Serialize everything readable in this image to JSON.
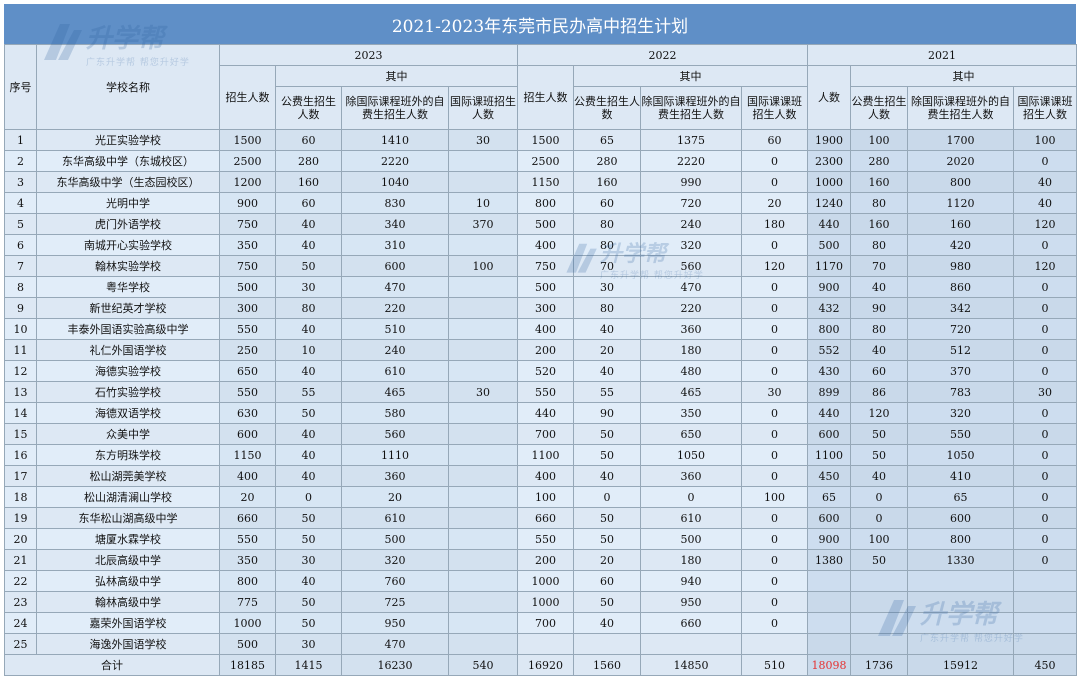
{
  "title": "2021-2023年东莞市民办高中招生计划",
  "headers": {
    "no": "序号",
    "school": "学校名称",
    "year_2023": "2023",
    "year_2022": "2022",
    "year_2021": "2021",
    "of_which": "其中",
    "total_2023": "招生人数",
    "total_2022": "招生人数",
    "total_2021": "人数",
    "public": "公费生招生人数",
    "public_2021": "公费生招生人数",
    "private": "除国际课程班外的自费生招生人数",
    "intl": "国际课班招生人数",
    "intl_2022": "国际课课班招生人数",
    "intl_2021": "国际课课班招生人数"
  },
  "rows": [
    {
      "no": "1",
      "name": "光正实验学校",
      "y23": [
        "1500",
        "60",
        "1410",
        "30"
      ],
      "y22": [
        "1500",
        "65",
        "1375",
        "60"
      ],
      "y21": [
        "1900",
        "100",
        "1700",
        "100"
      ]
    },
    {
      "no": "2",
      "name": "东华高级中学（东城校区）",
      "y23": [
        "2500",
        "280",
        "2220",
        ""
      ],
      "y22": [
        "2500",
        "280",
        "2220",
        "0"
      ],
      "y21": [
        "2300",
        "280",
        "2020",
        "0"
      ]
    },
    {
      "no": "3",
      "name": "东华高级中学（生态园校区）",
      "y23": [
        "1200",
        "160",
        "1040",
        ""
      ],
      "y22": [
        "1150",
        "160",
        "990",
        "0"
      ],
      "y21": [
        "1000",
        "160",
        "800",
        "40"
      ]
    },
    {
      "no": "4",
      "name": "光明中学",
      "y23": [
        "900",
        "60",
        "830",
        "10"
      ],
      "y22": [
        "800",
        "60",
        "720",
        "20"
      ],
      "y21": [
        "1240",
        "80",
        "1120",
        "40"
      ]
    },
    {
      "no": "5",
      "name": "虎门外语学校",
      "y23": [
        "750",
        "40",
        "340",
        "370"
      ],
      "y22": [
        "500",
        "80",
        "240",
        "180"
      ],
      "y21": [
        "440",
        "160",
        "160",
        "120"
      ]
    },
    {
      "no": "6",
      "name": "南城开心实验学校",
      "y23": [
        "350",
        "40",
        "310",
        ""
      ],
      "y22": [
        "400",
        "80",
        "320",
        "0"
      ],
      "y21": [
        "500",
        "80",
        "420",
        "0"
      ]
    },
    {
      "no": "7",
      "name": "翰林实验学校",
      "y23": [
        "750",
        "50",
        "600",
        "100"
      ],
      "y22": [
        "750",
        "70",
        "560",
        "120"
      ],
      "y21": [
        "1170",
        "70",
        "980",
        "120"
      ]
    },
    {
      "no": "8",
      "name": "粤华学校",
      "y23": [
        "500",
        "30",
        "470",
        ""
      ],
      "y22": [
        "500",
        "30",
        "470",
        "0"
      ],
      "y21": [
        "900",
        "40",
        "860",
        "0"
      ]
    },
    {
      "no": "9",
      "name": "新世纪英才学校",
      "y23": [
        "300",
        "80",
        "220",
        ""
      ],
      "y22": [
        "300",
        "80",
        "220",
        "0"
      ],
      "y21": [
        "432",
        "90",
        "342",
        "0"
      ]
    },
    {
      "no": "10",
      "name": "丰泰外国语实验高级中学",
      "y23": [
        "550",
        "40",
        "510",
        ""
      ],
      "y22": [
        "400",
        "40",
        "360",
        "0"
      ],
      "y21": [
        "800",
        "80",
        "720",
        "0"
      ]
    },
    {
      "no": "11",
      "name": "礼仁外国语学校",
      "y23": [
        "250",
        "10",
        "240",
        ""
      ],
      "y22": [
        "200",
        "20",
        "180",
        "0"
      ],
      "y21": [
        "552",
        "40",
        "512",
        "0"
      ]
    },
    {
      "no": "12",
      "name": "海德实验学校",
      "y23": [
        "650",
        "40",
        "610",
        ""
      ],
      "y22": [
        "520",
        "40",
        "480",
        "0"
      ],
      "y21": [
        "430",
        "60",
        "370",
        "0"
      ]
    },
    {
      "no": "13",
      "name": "石竹实验学校",
      "y23": [
        "550",
        "55",
        "465",
        "30"
      ],
      "y22": [
        "550",
        "55",
        "465",
        "30"
      ],
      "y21": [
        "899",
        "86",
        "783",
        "30"
      ]
    },
    {
      "no": "14",
      "name": "海德双语学校",
      "y23": [
        "630",
        "50",
        "580",
        ""
      ],
      "y22": [
        "440",
        "90",
        "350",
        "0"
      ],
      "y21": [
        "440",
        "120",
        "320",
        "0"
      ]
    },
    {
      "no": "15",
      "name": "众美中学",
      "y23": [
        "600",
        "40",
        "560",
        ""
      ],
      "y22": [
        "700",
        "50",
        "650",
        "0"
      ],
      "y21": [
        "600",
        "50",
        "550",
        "0"
      ]
    },
    {
      "no": "16",
      "name": "东方明珠学校",
      "y23": [
        "1150",
        "40",
        "1110",
        ""
      ],
      "y22": [
        "1100",
        "50",
        "1050",
        "0"
      ],
      "y21": [
        "1100",
        "50",
        "1050",
        "0"
      ]
    },
    {
      "no": "17",
      "name": "松山湖莞美学校",
      "y23": [
        "400",
        "40",
        "360",
        ""
      ],
      "y22": [
        "400",
        "40",
        "360",
        "0"
      ],
      "y21": [
        "450",
        "40",
        "410",
        "0"
      ]
    },
    {
      "no": "18",
      "name": "松山湖清澜山学校",
      "y23": [
        "20",
        "0",
        "20",
        ""
      ],
      "y22": [
        "100",
        "0",
        "0",
        "100"
      ],
      "y21": [
        "65",
        "0",
        "65",
        "0"
      ]
    },
    {
      "no": "19",
      "name": "东华松山湖高级中学",
      "y23": [
        "660",
        "50",
        "610",
        ""
      ],
      "y22": [
        "660",
        "50",
        "610",
        "0"
      ],
      "y21": [
        "600",
        "0",
        "600",
        "0"
      ]
    },
    {
      "no": "20",
      "name": "塘厦水霖学校",
      "y23": [
        "550",
        "50",
        "500",
        ""
      ],
      "y22": [
        "550",
        "50",
        "500",
        "0"
      ],
      "y21": [
        "900",
        "100",
        "800",
        "0"
      ]
    },
    {
      "no": "21",
      "name": "北辰高级中学",
      "y23": [
        "350",
        "30",
        "320",
        ""
      ],
      "y22": [
        "200",
        "20",
        "180",
        "0"
      ],
      "y21": [
        "1380",
        "50",
        "1330",
        "0"
      ]
    },
    {
      "no": "22",
      "name": "弘林高级中学",
      "y23": [
        "800",
        "40",
        "760",
        ""
      ],
      "y22": [
        "1000",
        "60",
        "940",
        "0"
      ],
      "y21": [
        "",
        "",
        "",
        ""
      ]
    },
    {
      "no": "23",
      "name": "翰林高级中学",
      "y23": [
        "775",
        "50",
        "725",
        ""
      ],
      "y22": [
        "1000",
        "50",
        "950",
        "0"
      ],
      "y21": [
        "",
        "",
        "",
        ""
      ]
    },
    {
      "no": "24",
      "name": "嘉荣外国语学校",
      "y23": [
        "1000",
        "50",
        "950",
        ""
      ],
      "y22": [
        "700",
        "40",
        "660",
        "0"
      ],
      "y21": [
        "",
        "",
        "",
        ""
      ]
    },
    {
      "no": "25",
      "name": "海逸外国语学校",
      "y23": [
        "500",
        "30",
        "470",
        ""
      ],
      "y22": [
        "",
        "",
        "",
        ""
      ],
      "y21": [
        "",
        "",
        "",
        ""
      ]
    }
  ],
  "total": {
    "label": "合计",
    "y23": [
      "18185",
      "1415",
      "16230",
      "540"
    ],
    "y22": [
      "16920",
      "1560",
      "14850",
      "510"
    ],
    "y21": [
      "18098",
      "1736",
      "15912",
      "450"
    ]
  },
  "watermark": {
    "logo": "升学帮",
    "slogan": "广东升学帮  帮您升好学"
  },
  "colors": {
    "title_bg": "#5f8fc7",
    "highlight": "#e53333"
  }
}
